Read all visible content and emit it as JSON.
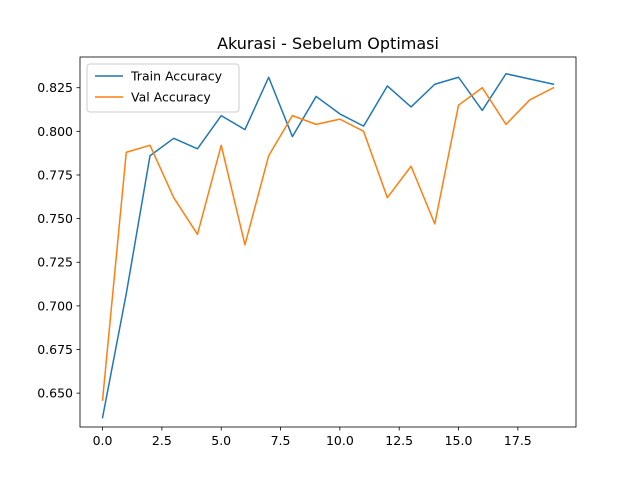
{
  "chart_data": {
    "type": "line",
    "title": "Akurasi - Sebelum Optimasi",
    "xlabel": "",
    "ylabel": "",
    "xlim": [
      -0.95,
      19.95
    ],
    "ylim": [
      0.6306,
      0.8426
    ],
    "xticks": [
      0.0,
      2.5,
      5.0,
      7.5,
      10.0,
      12.5,
      15.0,
      17.5
    ],
    "xtick_labels": [
      "0.0",
      "2.5",
      "5.0",
      "7.5",
      "10.0",
      "12.5",
      "15.0",
      "17.5"
    ],
    "yticks": [
      0.65,
      0.675,
      0.7,
      0.725,
      0.75,
      0.775,
      0.8,
      0.825
    ],
    "ytick_labels": [
      "0.650",
      "0.675",
      "0.700",
      "0.725",
      "0.750",
      "0.775",
      "0.800",
      "0.825"
    ],
    "grid": false,
    "legend_position": "top-left",
    "x": [
      0,
      1,
      2,
      3,
      4,
      5,
      6,
      7,
      8,
      9,
      10,
      11,
      12,
      13,
      14,
      15,
      16,
      17,
      18,
      19
    ],
    "series": [
      {
        "name": "Train Accuracy",
        "color": "#1f77b4",
        "values": [
          0.636,
          0.707,
          0.786,
          0.796,
          0.79,
          0.809,
          0.801,
          0.831,
          0.797,
          0.82,
          0.81,
          0.803,
          0.826,
          0.814,
          0.827,
          0.831,
          0.812,
          0.833,
          0.83,
          0.827
        ]
      },
      {
        "name": "Val Accuracy",
        "color": "#ff7f0e",
        "values": [
          0.646,
          0.788,
          0.792,
          0.762,
          0.741,
          0.792,
          0.735,
          0.786,
          0.809,
          0.804,
          0.807,
          0.8,
          0.762,
          0.78,
          0.747,
          0.815,
          0.825,
          0.804,
          0.818,
          0.825
        ]
      }
    ]
  }
}
